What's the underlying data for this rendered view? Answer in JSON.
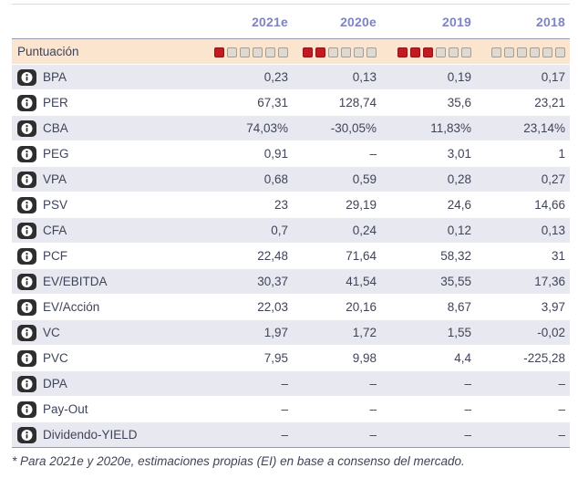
{
  "table": {
    "columns": [
      "2021e",
      "2020e",
      "2019",
      "2018"
    ],
    "scoring": {
      "label": "Puntuación",
      "max": 6,
      "scores": [
        1,
        2,
        3,
        0
      ]
    },
    "rows": [
      {
        "label": "BPA",
        "values": [
          "0,23",
          "0,13",
          "0,19",
          "0,17"
        ]
      },
      {
        "label": "PER",
        "values": [
          "67,31",
          "128,74",
          "35,6",
          "23,21"
        ]
      },
      {
        "label": "CBA",
        "values": [
          "74,03%",
          "-30,05%",
          "11,83%",
          "23,14%"
        ]
      },
      {
        "label": "PEG",
        "values": [
          "0,91",
          "–",
          "3,01",
          "1"
        ]
      },
      {
        "label": "VPA",
        "values": [
          "0,68",
          "0,59",
          "0,28",
          "0,27"
        ]
      },
      {
        "label": "PSV",
        "values": [
          "23",
          "29,19",
          "24,6",
          "14,66"
        ]
      },
      {
        "label": "CFA",
        "values": [
          "0,7",
          "0,24",
          "0,12",
          "0,13"
        ]
      },
      {
        "label": "PCF",
        "values": [
          "22,48",
          "71,64",
          "58,32",
          "31"
        ]
      },
      {
        "label": "EV/EBITDA",
        "values": [
          "30,37",
          "41,54",
          "35,55",
          "17,36"
        ]
      },
      {
        "label": "EV/Acción",
        "values": [
          "22,03",
          "20,16",
          "8,67",
          "3,97"
        ]
      },
      {
        "label": "VC",
        "values": [
          "1,97",
          "1,72",
          "1,55",
          "-0,02"
        ]
      },
      {
        "label": "PVC",
        "values": [
          "7,95",
          "9,98",
          "4,4",
          "-225,28"
        ]
      },
      {
        "label": "DPA",
        "values": [
          "–",
          "–",
          "–",
          "–"
        ]
      },
      {
        "label": "Pay-Out",
        "values": [
          "–",
          "–",
          "–",
          "–"
        ]
      },
      {
        "label": "Dividendo-YIELD",
        "values": [
          "–",
          "–",
          "–",
          "–"
        ]
      }
    ]
  },
  "footnote": "* Para 2021e y 2020e, estimaciones propias (EI) en base a consenso del mercado.",
  "colors": {
    "score_filled": "#c11a20",
    "score_filled_border": "#951115",
    "score_empty_fill": "#e0d9d0",
    "score_empty_border": "#a49e96",
    "scoring_row_bg": "#fce5cf",
    "row_alt_bg": "#e8e8f0",
    "header_text": "#7f83c3",
    "body_text": "#3f4458"
  }
}
